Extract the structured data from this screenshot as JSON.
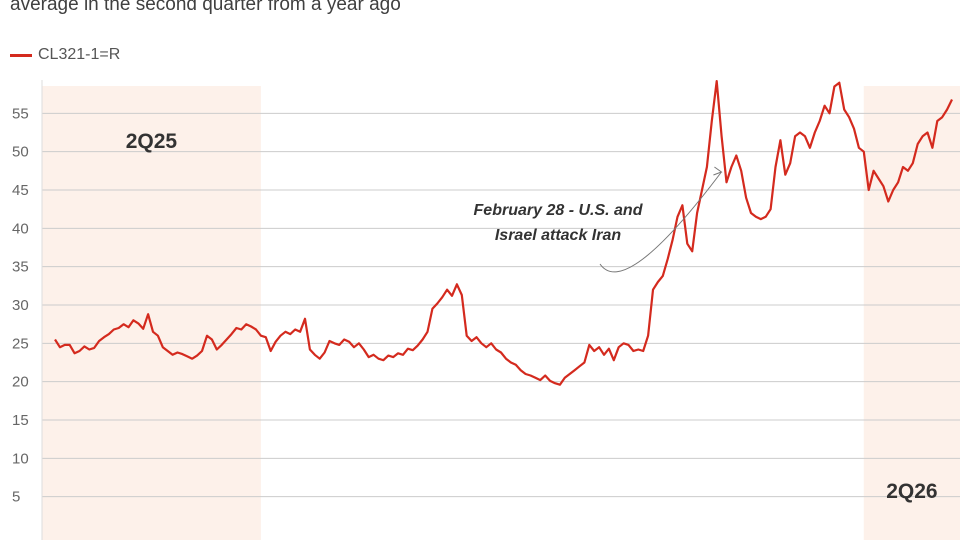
{
  "subtitle": "average in the second quarter from a year ago",
  "legend": {
    "label": "CL321-1=R",
    "color": "#d42a1e"
  },
  "chart_data": {
    "type": "line",
    "ylim": [
      0,
      60
    ],
    "yticks": [
      5,
      10,
      15,
      20,
      25,
      30,
      35,
      40,
      45,
      50,
      55
    ],
    "grid": true,
    "shade_color": "#fdf1ea",
    "periods": [
      {
        "label": "2Q25",
        "start_index": 0,
        "end_index": 42
      },
      {
        "label": "2Q26",
        "start_index": 165,
        "end_index": 205
      }
    ],
    "annotation": {
      "lines": [
        "February 28 - U.S. and",
        "Israel attack Iran"
      ],
      "index": 138
    },
    "series": [
      {
        "color": "#d42a1e",
        "values": [
          25.5,
          24.5,
          24.8,
          24.8,
          23.7,
          24.0,
          24.6,
          24.2,
          24.4,
          25.3,
          25.8,
          26.2,
          26.8,
          27.0,
          27.5,
          27.1,
          28.0,
          27.6,
          26.9,
          28.8,
          26.5,
          26.0,
          24.5,
          24.0,
          23.5,
          23.8,
          23.6,
          23.3,
          23.0,
          23.4,
          24.0,
          26.0,
          25.5,
          24.2,
          24.8,
          25.5,
          26.2,
          27.0,
          26.8,
          27.5,
          27.2,
          26.8,
          26.0,
          25.8,
          24.0,
          25.2,
          26.0,
          26.5,
          26.2,
          26.8,
          26.5,
          28.2,
          24.2,
          23.5,
          23.0,
          23.8,
          25.3,
          25.0,
          24.8,
          25.5,
          25.2,
          24.5,
          25.0,
          24.2,
          23.2,
          23.5,
          23.0,
          22.8,
          23.4,
          23.2,
          23.7,
          23.5,
          24.3,
          24.1,
          24.7,
          25.5,
          26.5,
          29.5,
          30.2,
          31.0,
          32.0,
          31.2,
          32.7,
          31.3,
          26.0,
          25.3,
          25.8,
          25.0,
          24.5,
          25.0,
          24.2,
          23.8,
          23.0,
          22.5,
          22.2,
          21.5,
          21.0,
          20.8,
          20.5,
          20.2,
          20.8,
          20.1,
          19.8,
          19.6,
          20.5,
          21.0,
          21.5,
          22.0,
          22.5,
          24.8,
          24.0,
          24.5,
          23.5,
          24.3,
          22.8,
          24.5,
          25.0,
          24.8,
          24.0,
          24.2,
          24.0,
          26.0,
          32.0,
          33.0,
          33.8,
          36.0,
          38.5,
          41.5,
          43.0,
          38.0,
          37.0,
          42.0,
          45.0,
          48.0,
          54.0,
          59.2,
          52.0,
          46.0,
          48.0,
          49.5,
          47.5,
          44.0,
          42.0,
          41.5,
          41.2,
          41.5,
          42.5,
          48.0,
          51.5,
          47.0,
          48.5,
          52.0,
          52.5,
          52.0,
          50.5,
          52.5,
          54.0,
          56.0,
          55.0,
          58.5,
          59.0,
          55.5,
          54.5,
          53.0,
          50.5,
          50.0,
          45.0,
          47.5,
          46.5,
          45.5,
          43.5,
          45.0,
          46.0,
          48.0,
          47.5,
          48.5,
          51.0,
          52.0,
          52.5,
          50.5,
          54.0,
          54.5,
          55.5,
          56.8
        ]
      }
    ]
  }
}
